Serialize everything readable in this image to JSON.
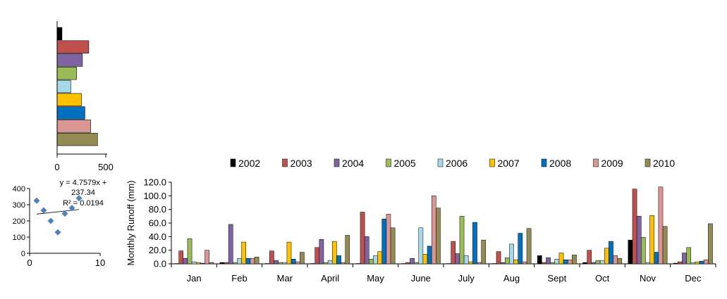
{
  "chart_data": [
    {
      "type": "bar",
      "orientation": "horizontal",
      "title": "",
      "categories": [
        "2002",
        "2003",
        "2004",
        "2005",
        "2006",
        "2007",
        "2008",
        "2009",
        "2010"
      ],
      "values": [
        50,
        325,
        260,
        200,
        140,
        250,
        285,
        345,
        415
      ],
      "xlim": [
        0,
        500
      ],
      "xticks": [
        "0",
        "500"
      ],
      "colors": [
        "#000000",
        "#c0504d",
        "#8064a2",
        "#9bbb59",
        "#a6d8e8",
        "#ffc000",
        "#0070c0",
        "#d99694",
        "#948a54"
      ],
      "grid": false
    },
    {
      "type": "scatter",
      "title": "",
      "points": [
        {
          "x": 1,
          "y": 325
        },
        {
          "x": 2,
          "y": 265
        },
        {
          "x": 3,
          "y": 200
        },
        {
          "x": 4,
          "y": 130
        },
        {
          "x": 5,
          "y": 245
        },
        {
          "x": 6,
          "y": 280
        },
        {
          "x": 7,
          "y": 340
        }
      ],
      "xlim": [
        0,
        10
      ],
      "ylim": [
        0,
        400
      ],
      "xticks": [
        "0",
        "10"
      ],
      "yticks": [
        "0",
        "100",
        "200",
        "300",
        "400"
      ],
      "trendline": {
        "slope": 4.7579,
        "intercept": 237.34,
        "x_range": [
          1,
          7
        ]
      },
      "equation_line1": "y = 4.7579x +",
      "equation_line2": "237.34",
      "r2": "R² = 0.0194",
      "marker_color": "#4f81bd"
    },
    {
      "type": "bar",
      "title": "",
      "ylabel": "Monthly  Runoff (mm)",
      "xlabel": "",
      "ylim": [
        0,
        120
      ],
      "yticks": [
        "0.0",
        "20.0",
        "40.0",
        "60.0",
        "80.0",
        "100.0",
        "120.0"
      ],
      "legend_position": "top",
      "grid": false,
      "categories": [
        "Jan",
        "Feb",
        "Mar",
        "April",
        "May",
        "June",
        "July",
        "Aug",
        "Sept",
        "Oct",
        "Nov",
        "Dec"
      ],
      "series": [
        {
          "name": "2002",
          "color": "#000000",
          "values": [
            0.5,
            2,
            0.5,
            0.5,
            0.5,
            0.5,
            0.5,
            0.5,
            12,
            2,
            35,
            1
          ]
        },
        {
          "name": "2003",
          "color": "#c0504d",
          "values": [
            19,
            2,
            19,
            24,
            76,
            2,
            33,
            18,
            2,
            20,
            110,
            3
          ]
        },
        {
          "name": "2004",
          "color": "#8064a2",
          "values": [
            8,
            58,
            5,
            36,
            40,
            8,
            15,
            2,
            9,
            2,
            70,
            16
          ]
        },
        {
          "name": "2005",
          "color": "#9bbb59",
          "values": [
            37,
            2,
            2,
            2,
            7,
            2,
            70,
            9,
            2,
            5,
            39,
            24
          ]
        },
        {
          "name": "2006",
          "color": "#a6d8e8",
          "values": [
            3,
            8,
            2,
            5,
            12,
            53,
            12,
            29,
            7,
            5,
            2,
            2
          ]
        },
        {
          "name": "2007",
          "color": "#ffc000",
          "values": [
            2,
            32,
            32,
            33,
            18,
            14,
            3,
            6,
            16,
            23,
            71,
            3
          ]
        },
        {
          "name": "2008",
          "color": "#0070c0",
          "values": [
            1,
            8,
            7,
            12,
            66,
            26,
            61,
            45,
            6,
            33,
            17,
            4
          ]
        },
        {
          "name": "2009",
          "color": "#d99694",
          "values": [
            20,
            8,
            3,
            2,
            73,
            100,
            2,
            3,
            6,
            12,
            113,
            6
          ]
        },
        {
          "name": "2010",
          "color": "#948a54",
          "values": [
            2,
            10,
            17,
            42,
            53,
            82,
            35,
            52,
            13,
            8,
            55,
            59
          ]
        }
      ]
    }
  ]
}
